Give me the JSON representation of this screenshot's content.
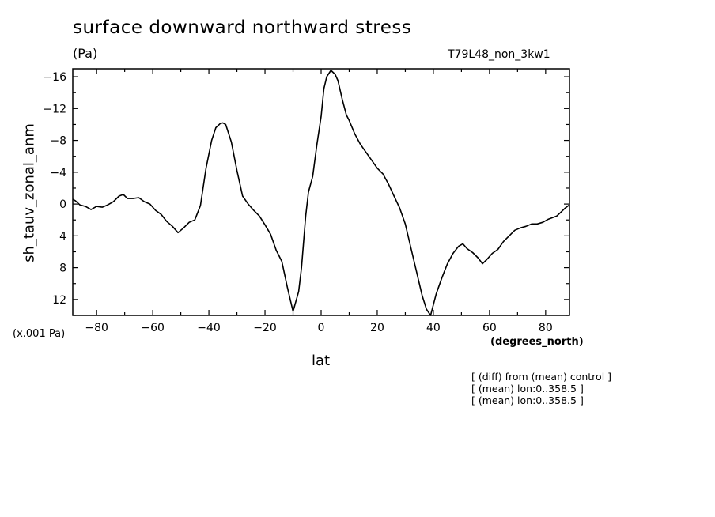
{
  "title": "surface downward northward stress",
  "units": "(Pa)",
  "run_name": "T79L48_non_3kw1",
  "scale_label": "(x.001 Pa)",
  "x_units": "(degrees_north)",
  "notes": [
    "[ (diff) from (mean) control ]",
    "[ (mean) lon:0..358.5 ]",
    "[ (mean) lon:0..358.5 ]"
  ],
  "chart_data": {
    "type": "line",
    "title": "surface downward northward stress",
    "xlabel": "lat",
    "ylabel": "sh_tauv_zonal_anm",
    "xlim": [
      -88.5,
      88.5
    ],
    "ylim": [
      14,
      -17
    ],
    "y_inverted": true,
    "x_ticks": [
      -80,
      -60,
      -40,
      -20,
      0,
      20,
      40,
      60,
      80
    ],
    "y_ticks": [
      -16,
      -12,
      -8,
      -4,
      0,
      4,
      8,
      12
    ],
    "color": "#000000",
    "series": [
      {
        "x": [
          -88.5,
          -87.5,
          -86,
          -84,
          -82,
          -80,
          -78,
          -76,
          -74,
          -72,
          -70.5,
          -69,
          -67,
          -65,
          -63,
          -61,
          -59,
          -57,
          -55,
          -53,
          -51,
          -49,
          -47,
          -45,
          -43,
          -41,
          -39,
          -37.5,
          -36,
          -35,
          -34,
          -32,
          -30,
          -28,
          -26,
          -24,
          -22,
          -20,
          -18,
          -16,
          -14,
          -12,
          -10,
          -8,
          -7,
          -5.5,
          -4.5,
          -3,
          -1.5,
          0,
          1,
          2,
          3.5,
          5,
          6,
          7.5,
          9,
          10,
          12,
          14,
          16,
          18,
          20,
          22,
          24,
          26,
          28,
          30,
          32,
          34,
          36,
          37.5,
          39,
          41,
          43,
          45,
          47,
          49,
          50.5,
          52,
          54,
          56,
          57.5,
          59,
          61,
          63,
          65,
          67,
          69,
          71,
          73,
          75,
          77,
          79,
          81,
          82.5,
          84,
          85.5,
          87,
          88.5
        ],
        "y": [
          -0.6,
          -0.4,
          0.1,
          0.3,
          0.7,
          0.3,
          0.4,
          0.1,
          -0.3,
          -1.0,
          -1.2,
          -0.7,
          -0.7,
          -0.8,
          -0.3,
          0,
          0.8,
          1.3,
          2.2,
          2.8,
          3.6,
          3.0,
          2.3,
          2.0,
          0.2,
          -4.5,
          -8.0,
          -9.6,
          -10.1,
          -10.2,
          -10.0,
          -7.8,
          -4.2,
          -1.0,
          0,
          0.8,
          1.5,
          2.6,
          3.8,
          5.8,
          7.2,
          10.5,
          13.5,
          11.0,
          8.0,
          1.5,
          -1.5,
          -3.5,
          -7.5,
          -11.0,
          -14.5,
          -16.0,
          -16.8,
          -16.3,
          -15.5,
          -13.2,
          -11.2,
          -10.5,
          -8.8,
          -7.5,
          -6.5,
          -5.5,
          -4.5,
          -3.8,
          -2.5,
          -1.0,
          0.5,
          2.5,
          5.5,
          8.5,
          11.5,
          13.2,
          14.0,
          11.3,
          9.3,
          7.5,
          6.2,
          5.3,
          5.0,
          5.6,
          6.1,
          6.8,
          7.5,
          7.0,
          6.2,
          5.7,
          4.7,
          4.0,
          3.3,
          3.0,
          2.8,
          2.5,
          2.5,
          2.3,
          1.9,
          1.7,
          1.5,
          1.0,
          0.5,
          0.1
        ]
      }
    ]
  }
}
